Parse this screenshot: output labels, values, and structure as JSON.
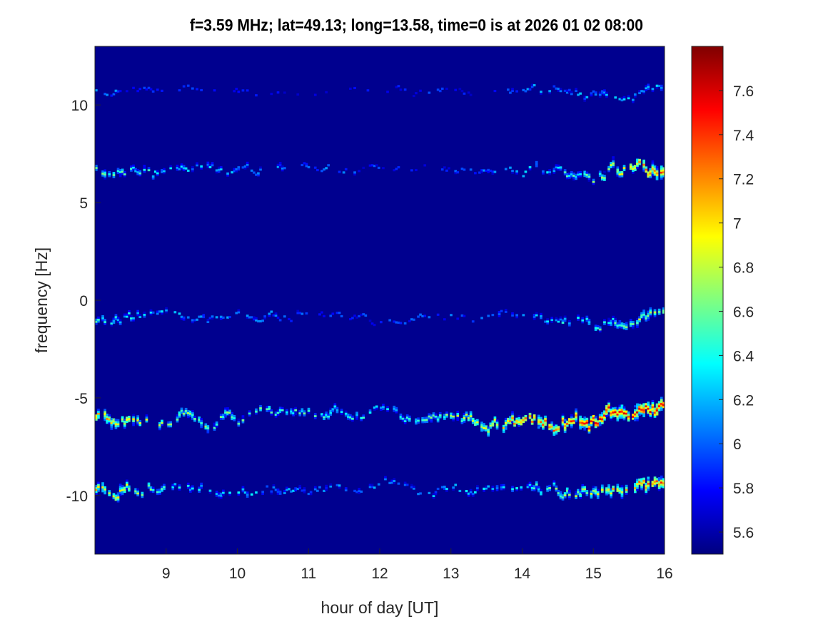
{
  "chart_data": {
    "type": "heatmap",
    "title": "f=3.59 MHz;  lat=49.13; long=13.58, time=0 is at 2026 01 02 08:00",
    "xlabel": "hour of day [UT]",
    "ylabel": "frequency [Hz]",
    "xlim": [
      8,
      16
    ],
    "ylim": [
      -13,
      13
    ],
    "xticks": [
      9,
      10,
      11,
      12,
      13,
      14,
      15,
      16
    ],
    "xtick_labels": [
      "9",
      "10",
      "11",
      "12",
      "13",
      "14",
      "15",
      "16"
    ],
    "yticks": [
      10,
      5,
      0,
      -5,
      -10
    ],
    "ytick_labels": [
      "10",
      "5",
      "0",
      "-5",
      "-10"
    ],
    "colormap": "jet",
    "clim": [
      5.5,
      7.8
    ],
    "colorbar_ticks": [
      7.6,
      7.4,
      7.2,
      7.0,
      6.8,
      6.6,
      6.4,
      6.2,
      6.0,
      5.8,
      5.6
    ],
    "colorbar_tick_labels": [
      "7.6",
      "7.4",
      "7.2",
      "7",
      "6.8",
      "6.6",
      "6.4",
      "6.2",
      "6",
      "5.8",
      "5.6"
    ],
    "background_value": 5.5,
    "bands_hours": [
      8,
      9,
      10,
      11,
      12,
      13,
      14,
      15,
      16
    ],
    "bands": [
      {
        "center_hz": [
          10.7,
          10.7,
          10.7,
          10.6,
          10.7,
          10.8,
          10.8,
          10.5,
          10.8
        ],
        "peak_value": [
          6.2,
          6.0,
          5.9,
          5.8,
          5.9,
          6.0,
          6.2,
          6.3,
          6.4
        ]
      },
      {
        "center_hz": [
          6.8,
          6.7,
          6.8,
          6.9,
          6.6,
          6.6,
          6.6,
          6.6,
          6.9
        ],
        "peak_value": [
          6.8,
          6.4,
          6.3,
          6.2,
          6.0,
          6.1,
          6.3,
          6.7,
          7.6
        ]
      },
      {
        "center_hz": [
          -0.9,
          -1.0,
          -0.8,
          -0.7,
          -1.1,
          -0.8,
          -0.8,
          -1.1,
          -0.8
        ],
        "peak_value": [
          6.6,
          6.3,
          6.2,
          6.1,
          6.0,
          6.1,
          6.3,
          6.6,
          7.0
        ]
      },
      {
        "center_hz": [
          -5.8,
          -6.0,
          -5.9,
          -5.8,
          -5.8,
          -5.9,
          -6.2,
          -6.2,
          -6.0
        ],
        "peak_value": [
          7.3,
          6.8,
          6.7,
          6.6,
          6.5,
          6.8,
          7.3,
          7.6,
          7.7
        ]
      },
      {
        "center_hz": [
          -9.6,
          -9.6,
          -9.7,
          -9.6,
          -9.7,
          -9.7,
          -9.6,
          -9.7,
          -9.9
        ],
        "peak_value": [
          7.2,
          6.6,
          6.4,
          6.2,
          6.2,
          6.3,
          6.5,
          7.0,
          7.5
        ]
      }
    ]
  }
}
